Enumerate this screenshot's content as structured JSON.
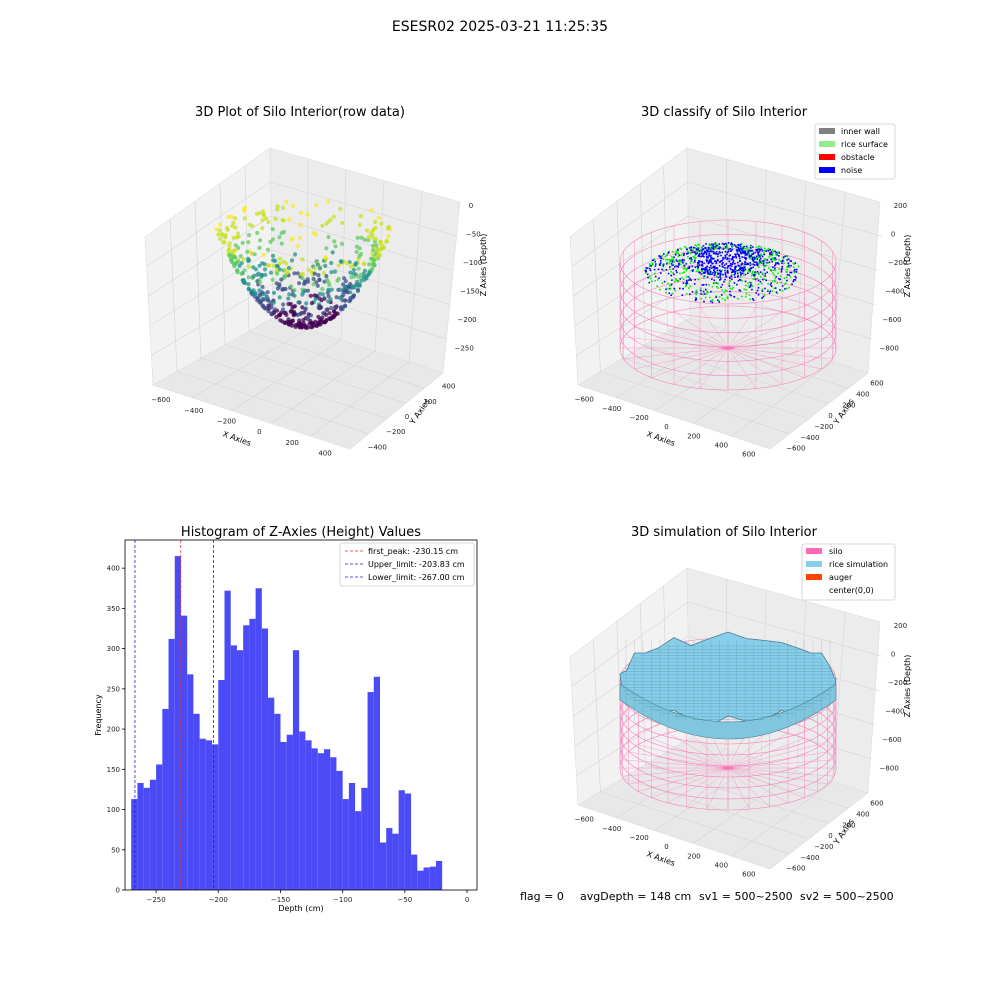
{
  "suptitle": "ESESR02 2025-03-21 11:25:35",
  "footer": {
    "flag": "flag = 0",
    "avg_depth": "avgDepth = 148 cm",
    "sv1": "sv1 = 500~2500",
    "sv2": "sv2 = 500~2500"
  },
  "colors": {
    "bar": "#4a4af7",
    "first_peak_line": "#e03030",
    "limit_line": "#2020d0",
    "inner_wall": "#808080",
    "rice_surface": "#90ee90",
    "obstacle": "#ff0000",
    "noise": "#0000ff",
    "silo": "#ff69b4",
    "rice_simulation": "#87ceeb",
    "auger": "#ff4500"
  },
  "chart_data": [
    {
      "type": "scatter",
      "title": "3D Plot of Silo Interior(row data)",
      "xlabel": "X Axies",
      "ylabel": "Y Axies",
      "zlabel": "Z Axies (Depth)",
      "x_ticks": [
        "−600",
        "−400",
        "−200",
        "0",
        "200",
        "400"
      ],
      "y_ticks": [
        "−400",
        "−200",
        "0",
        "200",
        "400"
      ],
      "z_ticks": [
        "0",
        "−50",
        "−100",
        "−150",
        "−200",
        "−250"
      ],
      "colormap": "viridis",
      "description_shape": "bowl-shaped point cloud, depth roughly −20 to −270"
    },
    {
      "type": "scatter",
      "title": "3D classify of Silo Interior",
      "xlabel": "X Axies",
      "ylabel": "Y Axies",
      "zlabel": "Z Axies (Depth)",
      "x_ticks": [
        "−600",
        "−400",
        "−200",
        "0",
        "200",
        "400",
        "600"
      ],
      "y_ticks": [
        "−600",
        "−400",
        "−200",
        "0",
        "200",
        "400",
        "600"
      ],
      "z_ticks": [
        "200",
        "0",
        "−200",
        "−400",
        "−600",
        "−800"
      ],
      "legend": [
        "inner wall",
        "rice surface",
        "obstacle",
        "noise"
      ],
      "legend_location": "top-right"
    },
    {
      "type": "bar",
      "title": "Histogram of Z-Axies (Height) Values",
      "xlabel": "Depth (cm)",
      "ylabel": "Frequency",
      "xlim": [
        -275,
        8
      ],
      "ylim": [
        0,
        435
      ],
      "x_ticks": [
        -250,
        -200,
        -150,
        -100,
        -50,
        0
      ],
      "x_tick_labels": [
        "−250",
        "−200",
        "−150",
        "−100",
        "−50",
        "0"
      ],
      "y_ticks": [
        0,
        50,
        100,
        150,
        200,
        250,
        300,
        350,
        400
      ],
      "bin_start": -270,
      "bin_width": 5,
      "values": [
        113,
        133,
        127,
        137,
        156,
        225,
        312,
        415,
        341,
        268,
        219,
        188,
        186,
        181,
        261,
        372,
        304,
        298,
        329,
        337,
        375,
        325,
        239,
        219,
        184,
        193,
        298,
        197,
        186,
        176,
        170,
        175,
        165,
        148,
        113,
        133,
        98,
        127,
        246,
        265,
        59,
        77,
        70,
        124,
        120,
        44,
        24,
        28,
        29,
        36
      ],
      "vlines": [
        {
          "label": "first_peak: -230.15 cm",
          "x": -230.15,
          "color": "#e03030"
        },
        {
          "label": "Upper_limit: -203.83 cm",
          "x": -203.83,
          "color": "#2020d0"
        },
        {
          "label": "Lower_limit: -267.00 cm",
          "x": -267.0,
          "color": "#2020d0"
        }
      ],
      "legend_location": "top-right"
    },
    {
      "type": "other",
      "title": "3D simulation of Silo Interior",
      "xlabel": "X Axies",
      "ylabel": "Y Axies",
      "zlabel": "Z Axies (Depth)",
      "x_ticks": [
        "−600",
        "−400",
        "−200",
        "0",
        "200",
        "400",
        "600"
      ],
      "y_ticks": [
        "−600",
        "−400",
        "−200",
        "0",
        "200",
        "400",
        "600"
      ],
      "z_ticks": [
        "200",
        "0",
        "−200",
        "−400",
        "−600",
        "−800"
      ],
      "legend": [
        "silo",
        "rice simulation",
        "auger",
        "center(0,0)"
      ],
      "legend_location": "top-right"
    }
  ]
}
